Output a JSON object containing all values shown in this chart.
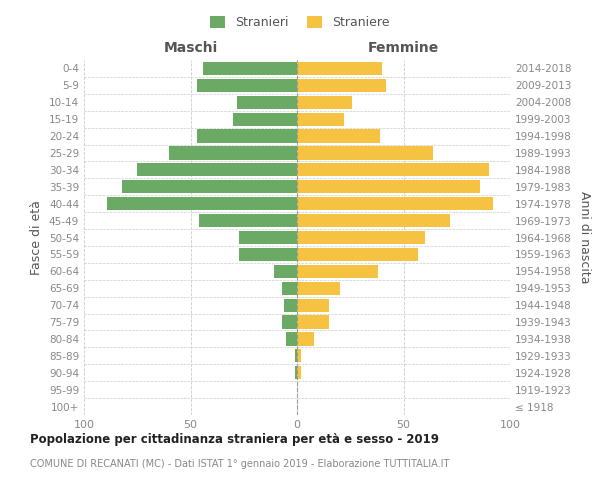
{
  "age_groups": [
    "100+",
    "95-99",
    "90-94",
    "85-89",
    "80-84",
    "75-79",
    "70-74",
    "65-69",
    "60-64",
    "55-59",
    "50-54",
    "45-49",
    "40-44",
    "35-39",
    "30-34",
    "25-29",
    "20-24",
    "15-19",
    "10-14",
    "5-9",
    "0-4"
  ],
  "birth_years": [
    "≤ 1918",
    "1919-1923",
    "1924-1928",
    "1929-1933",
    "1934-1938",
    "1939-1943",
    "1944-1948",
    "1949-1953",
    "1954-1958",
    "1959-1963",
    "1964-1968",
    "1969-1973",
    "1974-1978",
    "1979-1983",
    "1984-1988",
    "1989-1993",
    "1994-1998",
    "1999-2003",
    "2004-2008",
    "2009-2013",
    "2014-2018"
  ],
  "males": [
    0,
    0,
    1,
    1,
    5,
    7,
    6,
    7,
    11,
    27,
    27,
    46,
    89,
    82,
    75,
    60,
    47,
    30,
    28,
    47,
    44
  ],
  "females": [
    0,
    0,
    2,
    2,
    8,
    15,
    15,
    20,
    38,
    57,
    60,
    72,
    92,
    86,
    90,
    64,
    39,
    22,
    26,
    42,
    40
  ],
  "male_color": "#6aaa64",
  "female_color": "#f5c242",
  "male_label": "Stranieri",
  "female_label": "Straniere",
  "title": "Popolazione per cittadinanza straniera per età e sesso - 2019",
  "subtitle": "COMUNE DI RECANATI (MC) - Dati ISTAT 1° gennaio 2019 - Elaborazione TUTTITALIA.IT",
  "xlabel_left": "Maschi",
  "xlabel_right": "Femmine",
  "ylabel_left": "Fasce di età",
  "ylabel_right": "Anni di nascita",
  "xlim": 100,
  "background_color": "#ffffff",
  "grid_color": "#cccccc",
  "axis_label_color": "#555555",
  "tick_label_color": "#888888",
  "title_color": "#222222",
  "subtitle_color": "#888888"
}
